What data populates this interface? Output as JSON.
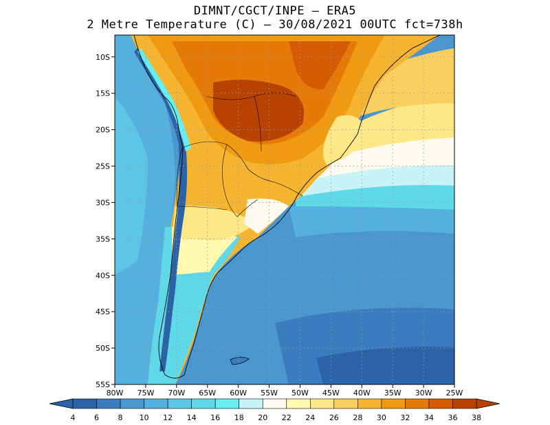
{
  "title_line1": "DIMNT/CGCT/INPE –  ERA5",
  "title_line2": "2 Metre Temperature (C) –  30/08/2021 00UTC fct=738h",
  "map": {
    "lon_range": [
      -80,
      -25
    ],
    "lat_range": [
      -55,
      -7
    ],
    "lon_ticks": [
      {
        "value": -80,
        "label": "80W"
      },
      {
        "value": -75,
        "label": "75W"
      },
      {
        "value": -70,
        "label": "70W"
      },
      {
        "value": -65,
        "label": "65W"
      },
      {
        "value": -60,
        "label": "60W"
      },
      {
        "value": -55,
        "label": "55W"
      },
      {
        "value": -50,
        "label": "50W"
      },
      {
        "value": -45,
        "label": "45W"
      },
      {
        "value": -40,
        "label": "40W"
      },
      {
        "value": -35,
        "label": "35W"
      },
      {
        "value": -30,
        "label": "30W"
      },
      {
        "value": -25,
        "label": "25W"
      }
    ],
    "lat_ticks": [
      {
        "value": -10,
        "label": "10S"
      },
      {
        "value": -15,
        "label": "15S"
      },
      {
        "value": -20,
        "label": "20S"
      },
      {
        "value": -25,
        "label": "25S"
      },
      {
        "value": -30,
        "label": "30S"
      },
      {
        "value": -35,
        "label": "35S"
      },
      {
        "value": -40,
        "label": "40S"
      },
      {
        "value": -45,
        "label": "45S"
      },
      {
        "value": -50,
        "label": "50S"
      },
      {
        "value": -55,
        "label": "55S"
      }
    ],
    "grid_lines": "dotted"
  },
  "colorbar": {
    "labels": [
      "4",
      "6",
      "8",
      "10",
      "12",
      "14",
      "16",
      "18",
      "20",
      "22",
      "24",
      "26",
      "28",
      "30",
      "32",
      "34",
      "36",
      "38"
    ],
    "colors": [
      "#2b63a6",
      "#3a7cbd",
      "#4a96cf",
      "#55b0dd",
      "#5cc6e4",
      "#5fd8e8",
      "#66eef0",
      "#c8f4f8",
      "#fffaf0",
      "#fffab0",
      "#fde888",
      "#f9d060",
      "#f5b530",
      "#ef9a10",
      "#e57a08",
      "#d45a04",
      "#b84202"
    ],
    "low_color": "#2b63a6",
    "high_color": "#b84202"
  }
}
